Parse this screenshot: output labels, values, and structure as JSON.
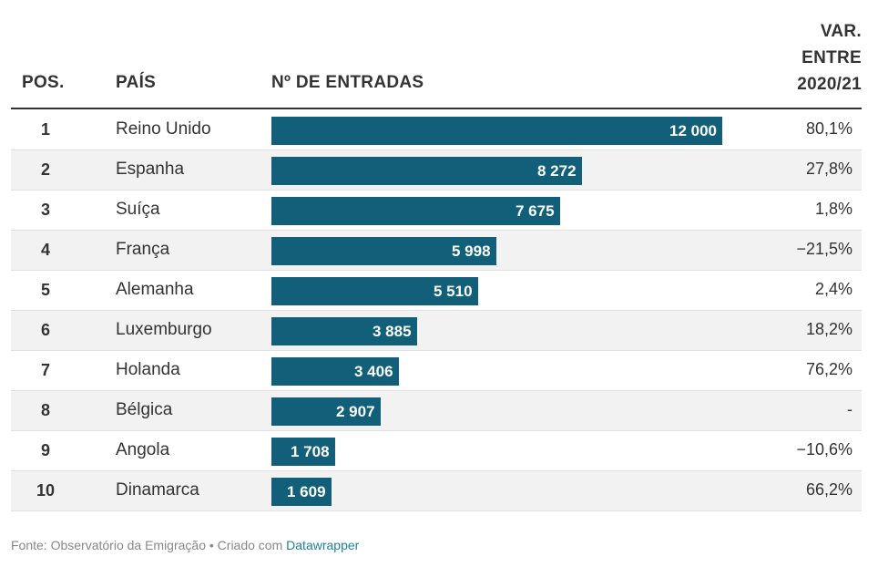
{
  "header": {
    "pos": "POS.",
    "pais": "PAÍS",
    "entradas": "Nº DE ENTRADAS",
    "var_line1": "VAR.",
    "var_line2": "ENTRE",
    "var_line3": "2020/21"
  },
  "footer": {
    "source_text": "Fonte: Observatório da Emigração • Criado com ",
    "link_text": "Datawrapper"
  },
  "colors": {
    "bar": "#115f79",
    "shaded_row": "#f2f2f2",
    "link": "#1d81a2"
  },
  "chart_data": {
    "type": "table",
    "columns": [
      "POS.",
      "PAÍS",
      "Nº DE ENTRADAS",
      "VAR. ENTRE 2020/21"
    ],
    "xlim": [
      0,
      12000
    ],
    "rows": [
      {
        "pos": "1",
        "pais": "Reino Unido",
        "entradas": 12000,
        "entradas_label": "12 000",
        "var": "80,1%"
      },
      {
        "pos": "2",
        "pais": "Espanha",
        "entradas": 8272,
        "entradas_label": "8 272",
        "var": "27,8%"
      },
      {
        "pos": "3",
        "pais": "Suíça",
        "entradas": 7675,
        "entradas_label": "7 675",
        "var": "1,8%"
      },
      {
        "pos": "4",
        "pais": "França",
        "entradas": 5998,
        "entradas_label": "5 998",
        "var": "−21,5%"
      },
      {
        "pos": "5",
        "pais": "Alemanha",
        "entradas": 5510,
        "entradas_label": "5 510",
        "var": "2,4%"
      },
      {
        "pos": "6",
        "pais": "Luxemburgo",
        "entradas": 3885,
        "entradas_label": "3 885",
        "var": "18,2%"
      },
      {
        "pos": "7",
        "pais": "Holanda",
        "entradas": 3406,
        "entradas_label": "3 406",
        "var": "76,2%"
      },
      {
        "pos": "8",
        "pais": "Bélgica",
        "entradas": 2907,
        "entradas_label": "2 907",
        "var": "-"
      },
      {
        "pos": "9",
        "pais": "Angola",
        "entradas": 1708,
        "entradas_label": "1 708",
        "var": "−10,6%"
      },
      {
        "pos": "10",
        "pais": "Dinamarca",
        "entradas": 1609,
        "entradas_label": "1 609",
        "var": "66,2%"
      }
    ]
  }
}
